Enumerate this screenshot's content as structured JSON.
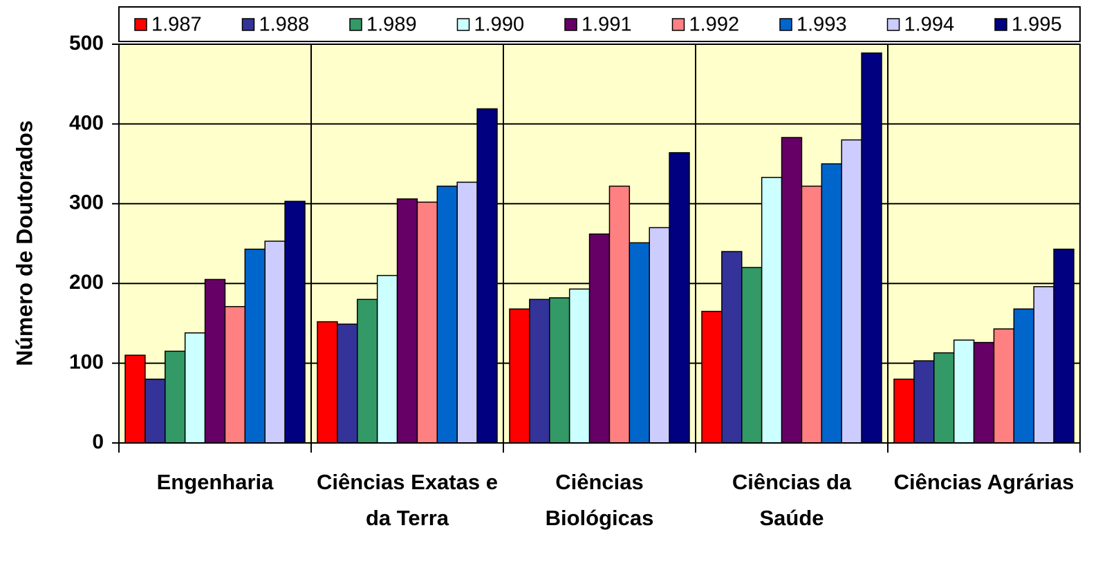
{
  "chart_data": {
    "type": "bar",
    "y_label": "Número de Doutorados",
    "categories": [
      "Engenharia",
      "Ciências Exatas e da Terra",
      "Ciências Biológicas",
      "Ciências da Saúde",
      "Ciências Agrárias"
    ],
    "series": [
      {
        "name": "1.987",
        "color": "#ff0000",
        "values": [
          110,
          152,
          168,
          165,
          80
        ]
      },
      {
        "name": "1.988",
        "color": "#333399",
        "values": [
          80,
          149,
          180,
          240,
          103
        ]
      },
      {
        "name": "1.989",
        "color": "#339966",
        "values": [
          115,
          180,
          182,
          220,
          113
        ]
      },
      {
        "name": "1.990",
        "color": "#ccffff",
        "values": [
          138,
          210,
          193,
          333,
          129
        ]
      },
      {
        "name": "1.991",
        "color": "#660066",
        "values": [
          205,
          306,
          262,
          383,
          126
        ]
      },
      {
        "name": "1.992",
        "color": "#ff8080",
        "values": [
          171,
          302,
          322,
          322,
          143
        ]
      },
      {
        "name": "1.993",
        "color": "#0066cc",
        "values": [
          243,
          322,
          251,
          350,
          168
        ]
      },
      {
        "name": "1.994",
        "color": "#ccccff",
        "values": [
          253,
          327,
          270,
          380,
          196
        ]
      },
      {
        "name": "1.995",
        "color": "#000080",
        "values": [
          303,
          419,
          364,
          489,
          243
        ]
      }
    ],
    "ylim": [
      0,
      500
    ],
    "yticks": [
      0,
      100,
      200,
      300,
      400,
      500
    ],
    "grid": true,
    "legend": "top"
  }
}
